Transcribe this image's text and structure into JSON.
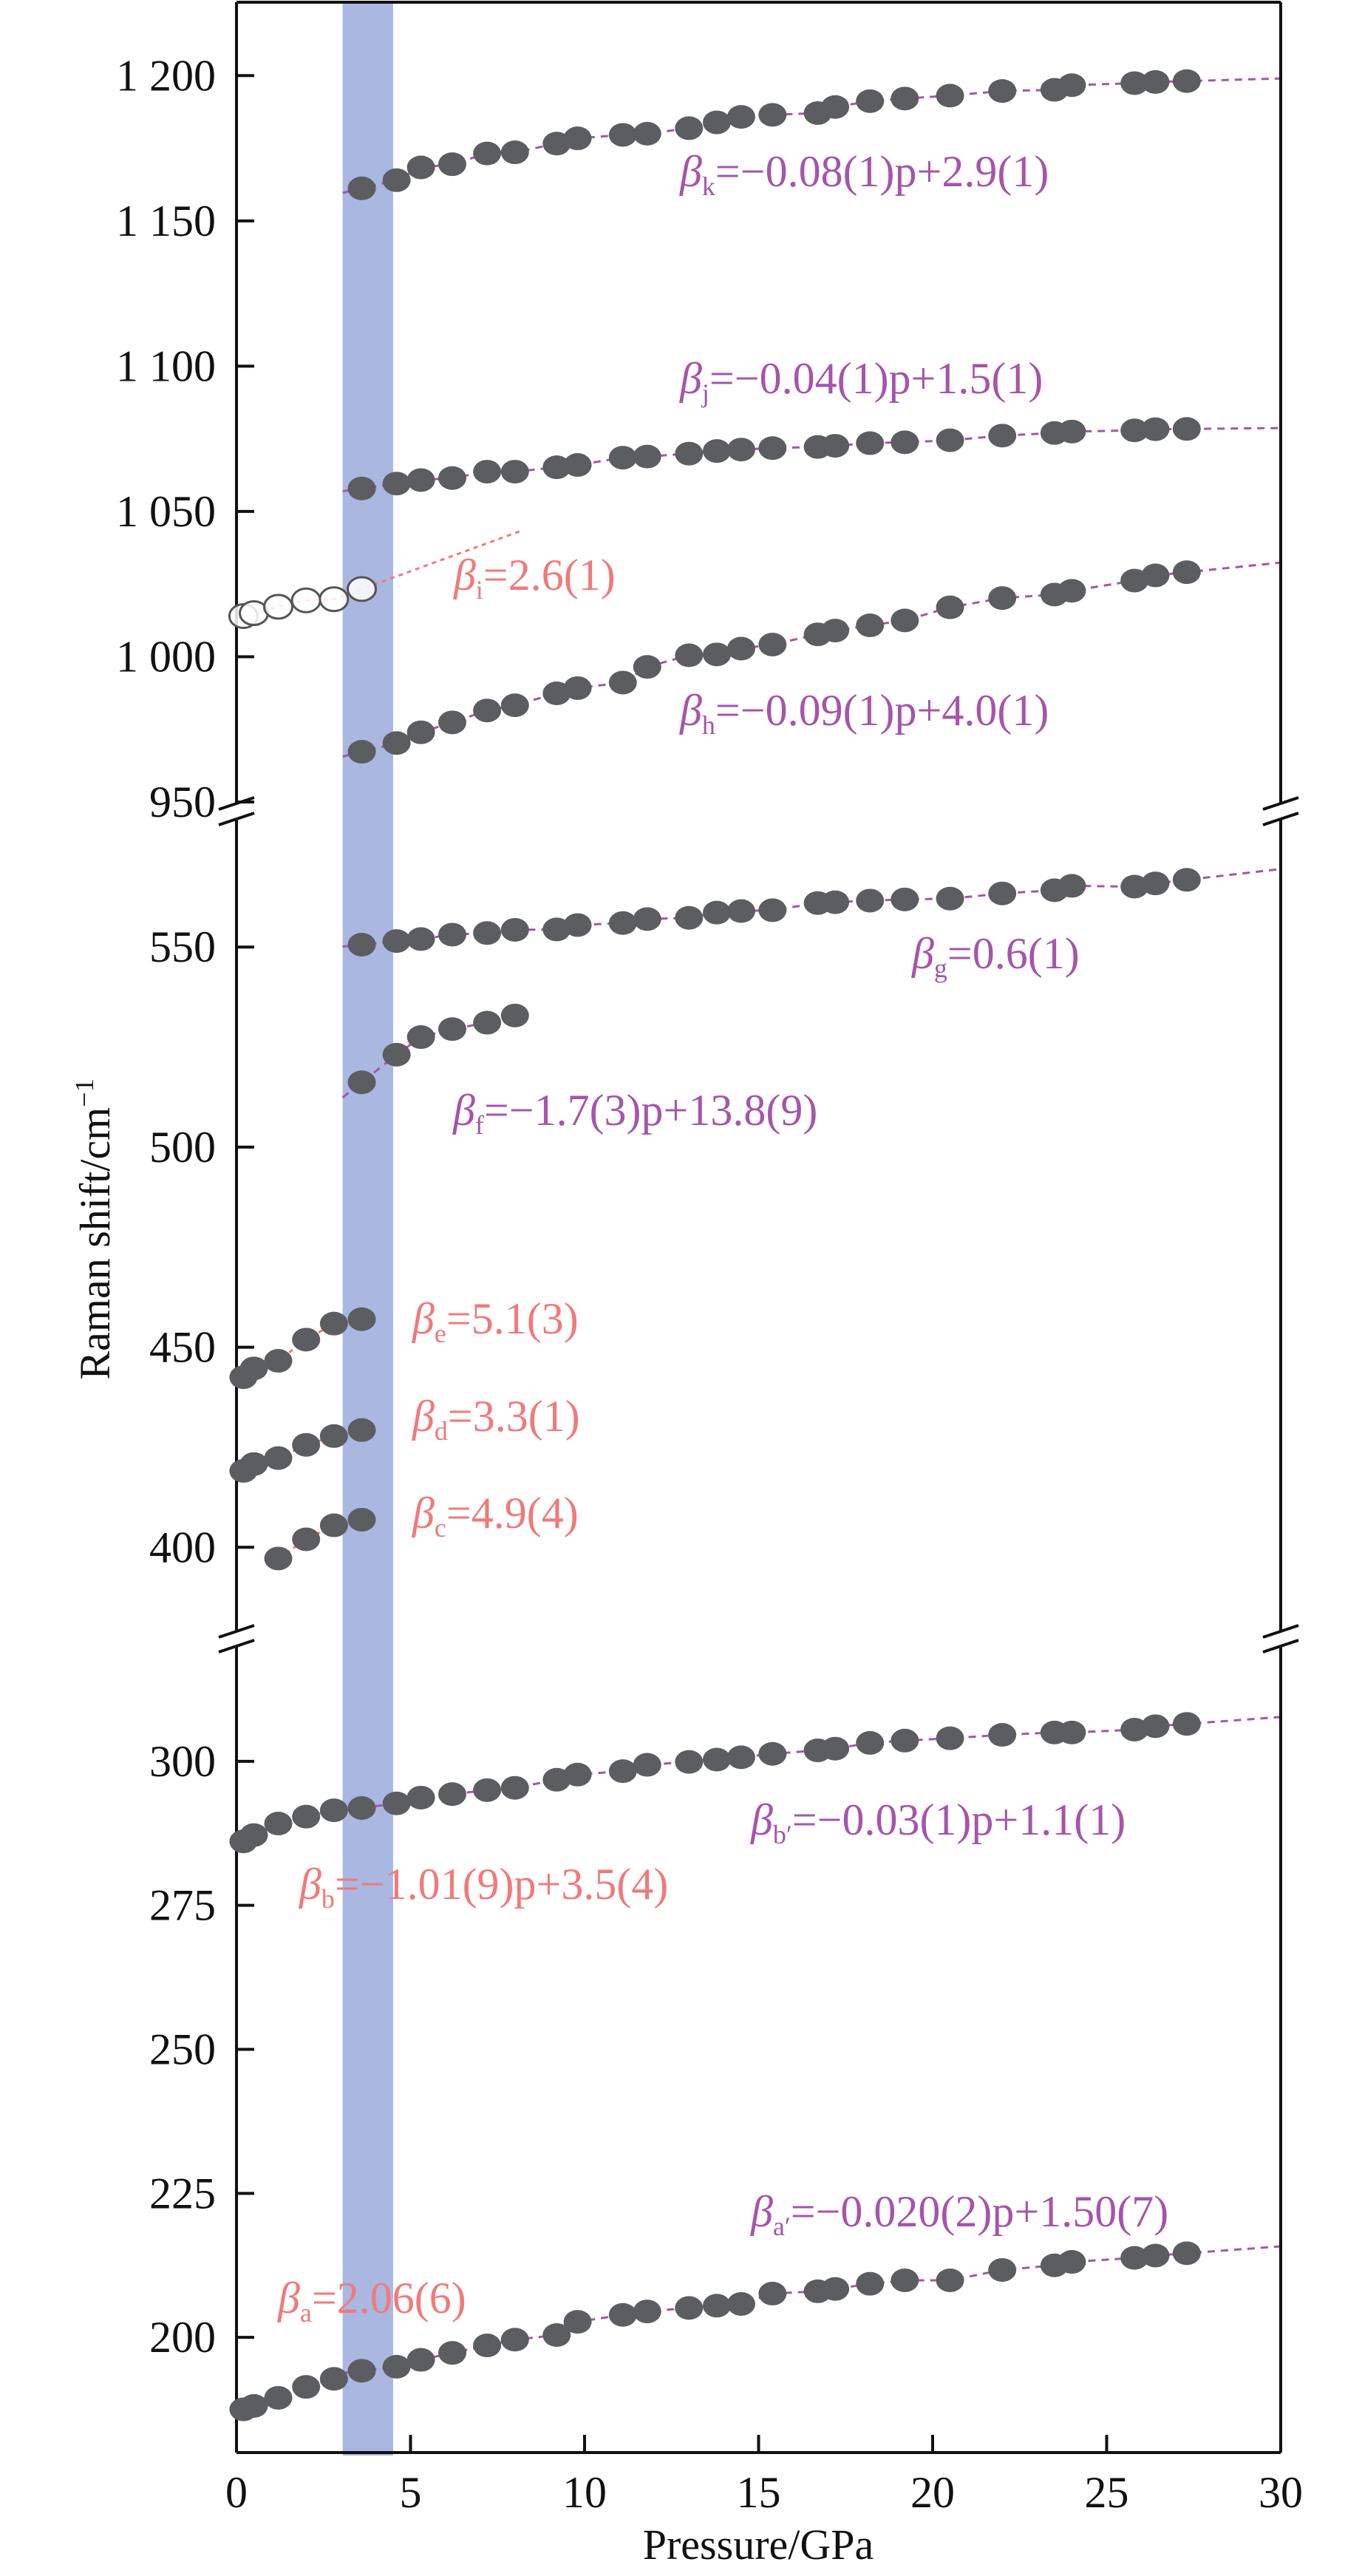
{
  "chart_data": {
    "type": "scatter",
    "xlabel": "Pressure/GPa",
    "ylabel": "Raman shift/cm",
    "ylabel_superscript": "−1",
    "xlim": [
      0,
      30
    ],
    "x_ticks": [
      0,
      5,
      10,
      15,
      20,
      25,
      30
    ],
    "x_tick_labels": [
      "0",
      "5",
      "10",
      "15",
      "20",
      "25",
      "30"
    ],
    "broken_y_axis": true,
    "panels": [
      {
        "id": "top",
        "ylim": [
          949.5,
          1225
        ],
        "ticks": [
          950,
          1000,
          1050,
          1100,
          1150,
          1200
        ],
        "tick_labels": [
          "950",
          "1 000",
          "1 050",
          "1 100",
          "1 150",
          "1 200"
        ]
      },
      {
        "id": "middle",
        "ylim": [
          379,
          582
        ],
        "ticks": [
          400,
          450,
          500,
          550
        ],
        "tick_labels": [
          "400",
          "450",
          "500",
          "550"
        ]
      },
      {
        "id": "bottom",
        "ylim": [
          180,
          320
        ],
        "ticks": [
          200,
          225,
          250,
          275,
          300
        ],
        "tick_labels": [
          "200",
          "225",
          "250",
          "275",
          "300"
        ]
      }
    ],
    "highlight_band": {
      "x_from": 3.05,
      "x_to": 4.5,
      "color": "#aab7e0"
    },
    "colors": {
      "marker": "#5b5d60",
      "open_marker_stroke": "#555555",
      "purple": "#a555aa",
      "pink": "#f07a7a"
    },
    "series": [
      {
        "panel": "bottom",
        "marker": "filled",
        "x": [
          0.2,
          0.5,
          1.2,
          2.0,
          2.8,
          3.6,
          4.6,
          5.3,
          6.2,
          7.2,
          8.0,
          9.2,
          9.8,
          11.1,
          11.8,
          13.0,
          13.8,
          14.5,
          15.4,
          16.7,
          17.2,
          18.2,
          19.2,
          20.5,
          22.0,
          23.5,
          24.0,
          25.8,
          26.4,
          27.3
        ],
        "y": [
          187.5,
          188.1,
          189.5,
          191.4,
          192.8,
          194.2,
          194.9,
          196.1,
          197.3,
          198.6,
          199.6,
          200.4,
          202.7,
          203.9,
          204.5,
          205.1,
          205.5,
          205.8,
          207.6,
          208.0,
          208.4,
          209.3,
          209.9,
          209.9,
          211.7,
          212.5,
          213.1,
          213.8,
          214.2,
          214.6
        ],
        "fits": [
          {
            "from": 0,
            "to": 3.05,
            "color": "pink"
          },
          {
            "from": 3.05,
            "to": 30,
            "color": "purple"
          }
        ]
      },
      {
        "panel": "bottom",
        "marker": "filled",
        "x": [
          0.2,
          0.5,
          1.2,
          2.0,
          2.8,
          3.6,
          4.6,
          5.3,
          6.2,
          7.2,
          8.0,
          9.2,
          9.8,
          11.1,
          11.8,
          13.0,
          13.8,
          14.5,
          15.4,
          16.7,
          17.2,
          18.2,
          19.2,
          20.5,
          22.0,
          23.5,
          24.0,
          25.8,
          26.4,
          27.3
        ],
        "y": [
          286.1,
          287.2,
          289.2,
          290.4,
          291.5,
          291.9,
          292.7,
          293.7,
          294.3,
          295.0,
          295.4,
          296.8,
          297.7,
          298.3,
          299.4,
          299.9,
          300.3,
          300.7,
          301.3,
          301.9,
          302.2,
          303.2,
          303.6,
          304.0,
          304.6,
          305.0,
          305.0,
          305.5,
          306.1,
          306.5
        ],
        "fits": [
          {
            "from": 0,
            "to": 3.6,
            "color": "pink"
          },
          {
            "from": 3.6,
            "to": 30,
            "color": "purple"
          }
        ]
      },
      {
        "panel": "middle",
        "marker": "filled",
        "x": [
          1.2,
          2.0,
          2.8,
          3.6
        ],
        "y": [
          397.2,
          402.0,
          405.5,
          406.9
        ],
        "fits": [
          {
            "from": 1.0,
            "to": 3.6,
            "color": "pink"
          }
        ]
      },
      {
        "panel": "middle",
        "marker": "filled",
        "x": [
          0.2,
          0.5,
          1.2,
          2.0,
          2.8,
          3.6
        ],
        "y": [
          419.1,
          420.8,
          422.3,
          425.6,
          427.8,
          429.3
        ],
        "fits": [
          {
            "from": 0,
            "to": 3.6,
            "color": "pink"
          }
        ]
      },
      {
        "panel": "middle",
        "marker": "filled",
        "x": [
          0.2,
          0.5,
          1.2,
          2.0,
          2.8,
          3.6
        ],
        "y": [
          442.5,
          444.7,
          446.6,
          451.9,
          455.9,
          457.0
        ],
        "fits": [
          {
            "from": 0,
            "to": 3.6,
            "color": "pink"
          }
        ]
      },
      {
        "panel": "middle",
        "marker": "filled",
        "x": [
          3.6,
          4.6,
          5.3,
          6.2,
          7.2,
          8.0
        ],
        "y": [
          516.2,
          523.1,
          527.5,
          529.5,
          531.1,
          532.9
        ],
        "fits": [
          {
            "from": 3.05,
            "to": 8.0,
            "color": "purple"
          }
        ]
      },
      {
        "panel": "middle",
        "marker": "filled",
        "x": [
          3.6,
          4.6,
          5.3,
          6.2,
          7.2,
          8.0,
          9.2,
          9.8,
          11.1,
          11.8,
          13.0,
          13.8,
          14.5,
          15.4,
          16.7,
          17.2,
          18.2,
          19.2,
          20.5,
          22.0,
          23.5,
          24.0,
          25.8,
          26.4,
          27.3
        ],
        "y": [
          550.6,
          551.5,
          552.0,
          553.1,
          553.5,
          554.3,
          554.4,
          555.5,
          556.0,
          557.0,
          557.3,
          558.6,
          559.0,
          559.2,
          561.0,
          561.2,
          561.6,
          561.9,
          562.1,
          563.4,
          564.2,
          565.3,
          565.1,
          565.9,
          566.8
        ],
        "fits": [
          {
            "from": 3.05,
            "to": 30,
            "color": "purple"
          }
        ]
      },
      {
        "panel": "top",
        "marker": "filled",
        "x": [
          3.6,
          4.6,
          5.3,
          6.2,
          7.2,
          8.0,
          9.2,
          9.8,
          11.1,
          11.8,
          13.0,
          13.8,
          14.5,
          15.4,
          16.7,
          17.2,
          18.2,
          19.2,
          20.5,
          22.0,
          23.5,
          24.0,
          25.8,
          26.4,
          27.3
        ],
        "y": [
          967.3,
          970.3,
          974.0,
          977.4,
          981.5,
          983.3,
          987.4,
          989.2,
          991.1,
          996.5,
          1000.5,
          1000.8,
          1002.8,
          1004.2,
          1007.7,
          1009.0,
          1010.8,
          1012.5,
          1017.0,
          1020.2,
          1021.4,
          1022.7,
          1026.2,
          1028.0,
          1029.1
        ],
        "fits": [
          {
            "from": 3.05,
            "to": 30,
            "color": "purple"
          }
        ]
      },
      {
        "panel": "top",
        "marker": "open",
        "x": [
          0.2,
          0.5,
          1.2,
          2.0,
          2.8,
          3.6
        ],
        "y": [
          1014.0,
          1015.0,
          1017.2,
          1019.4,
          1019.8,
          1023.3
        ],
        "fits": [
          {
            "from": 0,
            "to": 8.2,
            "color": "pink"
          }
        ]
      },
      {
        "panel": "top",
        "marker": "filled",
        "x": [
          3.6,
          4.6,
          5.3,
          6.2,
          7.2,
          8.0,
          9.2,
          9.8,
          11.1,
          11.8,
          13.0,
          13.8,
          14.5,
          15.4,
          16.7,
          17.2,
          18.2,
          19.2,
          20.5,
          22.0,
          23.5,
          24.0,
          25.8,
          26.4,
          27.3
        ],
        "y": [
          1057.9,
          1059.6,
          1060.8,
          1061.5,
          1063.7,
          1063.7,
          1065.2,
          1066.0,
          1068.5,
          1068.9,
          1069.9,
          1070.8,
          1071.3,
          1071.8,
          1072.2,
          1072.6,
          1073.5,
          1073.8,
          1074.5,
          1076.1,
          1077.0,
          1077.5,
          1077.9,
          1078.3,
          1078.4
        ],
        "fits": [
          {
            "from": 3.05,
            "to": 30,
            "color": "purple"
          }
        ]
      },
      {
        "panel": "top",
        "marker": "filled",
        "x": [
          3.6,
          4.6,
          5.3,
          6.2,
          7.2,
          8.0,
          9.2,
          9.8,
          11.1,
          11.8,
          13.0,
          13.8,
          14.5,
          15.4,
          16.7,
          17.2,
          18.2,
          19.2,
          20.5,
          22.0,
          23.5,
          24.0,
          25.8,
          26.4,
          27.3
        ],
        "y": [
          1161.2,
          1164.0,
          1168.4,
          1169.5,
          1173.2,
          1173.6,
          1176.6,
          1178.4,
          1179.6,
          1180.0,
          1181.9,
          1183.9,
          1185.8,
          1186.5,
          1187.1,
          1189.2,
          1191.2,
          1192.1,
          1193.1,
          1194.7,
          1195.1,
          1196.7,
          1197.4,
          1197.8,
          1198.1
        ],
        "fits": [
          {
            "from": 3.05,
            "to": 30,
            "color": "purple"
          }
        ]
      }
    ],
    "annotations": [
      {
        "symbol": "β",
        "sub": "k",
        "text": "=−0.08(1)p+2.9(1)",
        "color": "purple"
      },
      {
        "symbol": "β",
        "sub": "j",
        "text": "=−0.04(1)p+1.5(1)",
        "color": "purple"
      },
      {
        "symbol": "β",
        "sub": "h",
        "text": "=−0.09(1)p+4.0(1)",
        "color": "purple"
      },
      {
        "symbol": "β",
        "sub": "i",
        "text": "=2.6(1)",
        "color": "pink"
      },
      {
        "symbol": "β",
        "sub": "g",
        "text": "=0.6(1)",
        "color": "purple"
      },
      {
        "symbol": "β",
        "sub": "f",
        "text": "=−1.7(3)p+13.8(9)",
        "color": "purple"
      },
      {
        "symbol": "β",
        "sub": "e",
        "text": "=5.1(3)",
        "color": "pink"
      },
      {
        "symbol": "β",
        "sub": "d",
        "text": "=3.3(1)",
        "color": "pink"
      },
      {
        "symbol": "β",
        "sub": "c",
        "text": "=4.9(4)",
        "color": "pink"
      },
      {
        "symbol": "β",
        "sub": "b′",
        "text": "=−0.03(1)p+1.1(1)",
        "color": "purple"
      },
      {
        "symbol": "β",
        "sub": "b",
        "text": "=−1.01(9)p+3.5(4)",
        "color": "pink"
      },
      {
        "symbol": "β",
        "sub": "a′",
        "text": "=−0.020(2)p+1.50(7)",
        "color": "purple"
      },
      {
        "symbol": "β",
        "sub": "a",
        "text": "=2.06(6)",
        "color": "pink"
      }
    ]
  }
}
